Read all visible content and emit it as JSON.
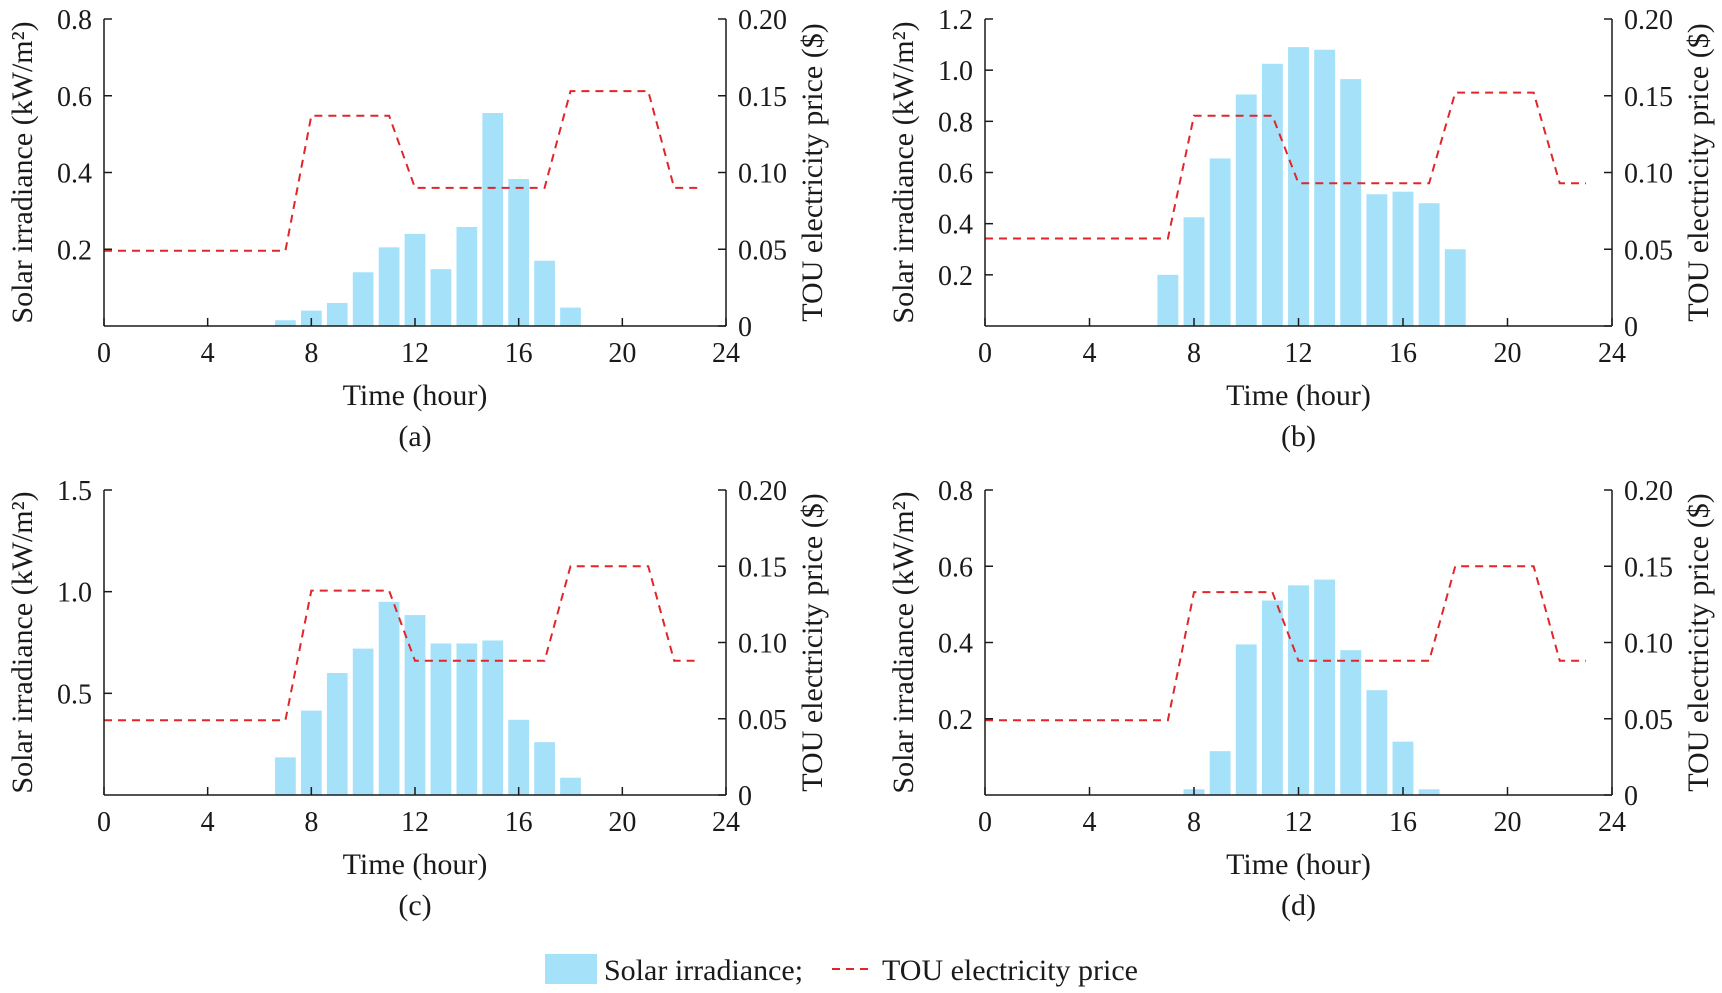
{
  "colors": {
    "bar": "#a6e1fa",
    "price_line": "#e0262b",
    "axis": "#1a1a1a"
  },
  "legend": {
    "irradiance_label": "Solar irradiance;",
    "price_label": "TOU electricity price"
  },
  "chart_data": [
    {
      "type": "bar+line",
      "panel_label": "(a)",
      "xlabel": "Time (hour)",
      "ylabel_left": "Solar irradiance (kW/m²)",
      "ylabel_right": "TOU electricity price ($)",
      "xlim": [
        0,
        24
      ],
      "xticks": [
        0,
        4,
        8,
        12,
        16,
        20,
        24
      ],
      "ylim_left": [
        0,
        0.8
      ],
      "yticks_left": [
        0.2,
        0.4,
        0.6,
        0.8
      ],
      "ytick_labels_left": [
        "0.2",
        "0.4",
        "0.6",
        "0.8"
      ],
      "ylim_right": [
        0,
        0.2
      ],
      "yticks_right": [
        0,
        0.05,
        0.1,
        0.15,
        0.2
      ],
      "ytick_labels_right": [
        "0",
        "0.05",
        "0.10",
        "0.15",
        "0.20"
      ],
      "bars": {
        "name": "Solar irradiance",
        "x": [
          7,
          8,
          9,
          10,
          11,
          12,
          13,
          14,
          15,
          16,
          17,
          18
        ],
        "values": [
          0.015,
          0.04,
          0.06,
          0.14,
          0.205,
          0.24,
          0.148,
          0.258,
          0.555,
          0.383,
          0.17,
          0.048
        ]
      },
      "line": {
        "name": "TOU electricity price",
        "x": [
          0,
          7,
          8,
          11,
          12,
          17,
          18,
          21,
          22,
          23
        ],
        "values": [
          0.049,
          0.049,
          0.137,
          0.137,
          0.09,
          0.09,
          0.153,
          0.153,
          0.09,
          0.09
        ]
      }
    },
    {
      "type": "bar+line",
      "panel_label": "(b)",
      "xlabel": "Time (hour)",
      "ylabel_left": "Solar irradiance (kW/m²)",
      "ylabel_right": "TOU electricity price ($)",
      "xlim": [
        0,
        24
      ],
      "xticks": [
        0,
        4,
        8,
        12,
        16,
        20,
        24
      ],
      "ylim_left": [
        0,
        1.2
      ],
      "yticks_left": [
        0.2,
        0.4,
        0.6,
        0.8,
        1.0,
        1.2
      ],
      "ytick_labels_left": [
        "0.2",
        "0.4",
        "0.6",
        "0.8",
        "1.0",
        "1.2"
      ],
      "ylim_right": [
        0,
        0.2
      ],
      "yticks_right": [
        0,
        0.05,
        0.1,
        0.15,
        0.2
      ],
      "ytick_labels_right": [
        "0",
        "0.05",
        "0.10",
        "0.15",
        "0.20"
      ],
      "bars": {
        "name": "Solar irradiance",
        "x": [
          7,
          8,
          9,
          10,
          11,
          12,
          13,
          14,
          15,
          16,
          17,
          18
        ],
        "values": [
          0.2,
          0.425,
          0.655,
          0.905,
          1.025,
          1.09,
          1.08,
          0.965,
          0.515,
          0.525,
          0.48,
          0.3
        ]
      },
      "line": {
        "name": "TOU electricity price",
        "x": [
          0,
          7,
          8,
          11,
          12,
          17,
          18,
          21,
          22,
          23
        ],
        "values": [
          0.057,
          0.057,
          0.137,
          0.137,
          0.093,
          0.093,
          0.152,
          0.152,
          0.093,
          0.093
        ]
      }
    },
    {
      "type": "bar+line",
      "panel_label": "(c)",
      "xlabel": "Time (hour)",
      "ylabel_left": "Solar irradiance (kW/m²)",
      "ylabel_right": "TOU electricity price ($)",
      "xlim": [
        0,
        24
      ],
      "xticks": [
        0,
        4,
        8,
        12,
        16,
        20,
        24
      ],
      "ylim_left": [
        0,
        1.5
      ],
      "yticks_left": [
        0.5,
        1.0,
        1.5
      ],
      "ytick_labels_left": [
        "0.5",
        "1.0",
        "1.5"
      ],
      "ylim_right": [
        0,
        0.2
      ],
      "yticks_right": [
        0,
        0.05,
        0.1,
        0.15,
        0.2
      ],
      "ytick_labels_right": [
        "0",
        "0.05",
        "0.10",
        "0.15",
        "0.20"
      ],
      "bars": {
        "name": "Solar irradiance",
        "x": [
          7,
          8,
          9,
          10,
          11,
          12,
          13,
          14,
          15,
          16,
          17,
          18
        ],
        "values": [
          0.185,
          0.415,
          0.6,
          0.72,
          0.95,
          0.885,
          0.745,
          0.745,
          0.76,
          0.37,
          0.26,
          0.085
        ]
      },
      "line": {
        "name": "TOU electricity price",
        "x": [
          0,
          7,
          8,
          11,
          12,
          17,
          18,
          21,
          22,
          23
        ],
        "values": [
          0.049,
          0.049,
          0.134,
          0.134,
          0.088,
          0.088,
          0.15,
          0.15,
          0.088,
          0.088
        ]
      }
    },
    {
      "type": "bar+line",
      "panel_label": "(d)",
      "xlabel": "Time (hour)",
      "ylabel_left": "Solar irradiance (kW/m²)",
      "ylabel_right": "TOU electricity price ($)",
      "xlim": [
        0,
        24
      ],
      "xticks": [
        0,
        4,
        8,
        12,
        16,
        20,
        24
      ],
      "ylim_left": [
        0,
        0.8
      ],
      "yticks_left": [
        0.2,
        0.4,
        0.6,
        0.8
      ],
      "ytick_labels_left": [
        "0.2",
        "0.4",
        "0.6",
        "0.8"
      ],
      "ylim_right": [
        0,
        0.2
      ],
      "yticks_right": [
        0,
        0.05,
        0.1,
        0.15,
        0.2
      ],
      "ytick_labels_right": [
        "0",
        "0.05",
        "0.10",
        "0.15",
        "0.20"
      ],
      "bars": {
        "name": "Solar irradiance",
        "x": [
          8,
          9,
          10,
          11,
          12,
          13,
          14,
          15,
          16,
          17
        ],
        "values": [
          0.015,
          0.115,
          0.395,
          0.51,
          0.55,
          0.565,
          0.38,
          0.275,
          0.14,
          0.015
        ]
      },
      "line": {
        "name": "TOU electricity price",
        "x": [
          0,
          7,
          8,
          11,
          12,
          17,
          18,
          21,
          22,
          23
        ],
        "values": [
          0.049,
          0.049,
          0.133,
          0.133,
          0.088,
          0.088,
          0.15,
          0.15,
          0.088,
          0.088
        ]
      }
    }
  ]
}
